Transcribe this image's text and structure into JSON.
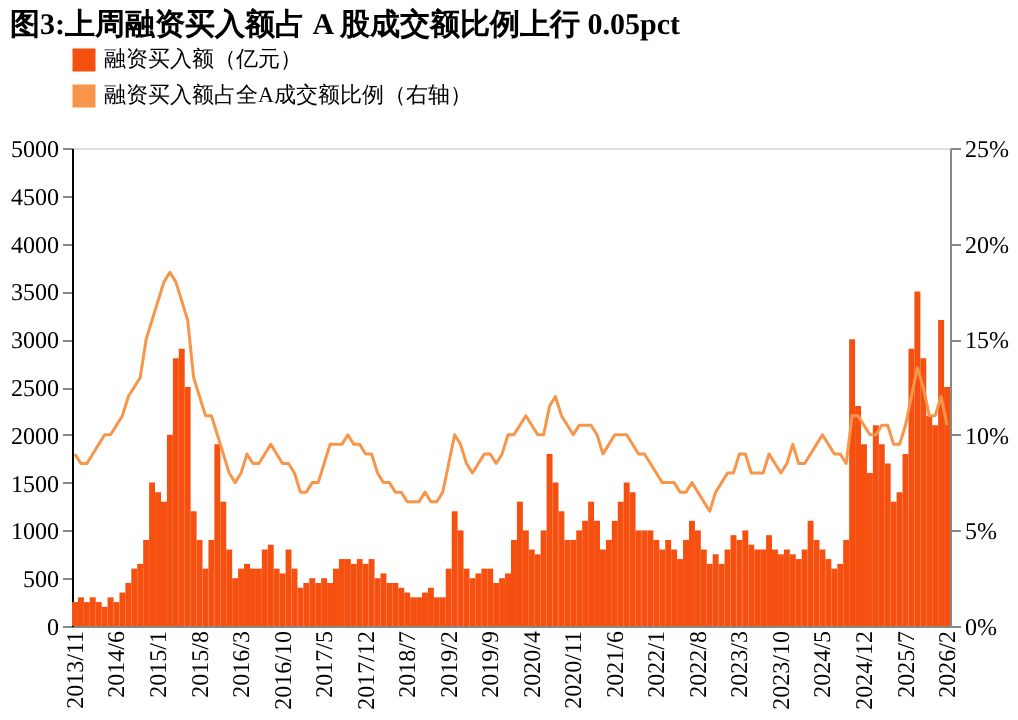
{
  "chart_data": {
    "type": "bar",
    "title": "图3:上周融资买入额占 A 股成交额比例上行 0.05pct",
    "categories": [
      "2013/11",
      null,
      null,
      null,
      null,
      null,
      null,
      "2014/6",
      null,
      null,
      null,
      null,
      null,
      null,
      "2015/1",
      null,
      null,
      null,
      null,
      null,
      null,
      "2015/8",
      null,
      null,
      null,
      null,
      null,
      null,
      "2016/3",
      null,
      null,
      null,
      null,
      null,
      null,
      "2016/10",
      null,
      null,
      null,
      null,
      null,
      null,
      "2017/5",
      null,
      null,
      null,
      null,
      null,
      null,
      "2017/12",
      null,
      null,
      null,
      null,
      null,
      null,
      "2018/7",
      null,
      null,
      null,
      null,
      null,
      null,
      "2019/2",
      null,
      null,
      null,
      null,
      null,
      null,
      "2019/9",
      null,
      null,
      null,
      null,
      null,
      null,
      "2020/4",
      null,
      null,
      null,
      null,
      null,
      null,
      "2020/11",
      null,
      null,
      null,
      null,
      null,
      null,
      "2021/6",
      null,
      null,
      null,
      null,
      null,
      null,
      "2022/1",
      null,
      null,
      null,
      null,
      null,
      null,
      "2022/8",
      null,
      null,
      null,
      null,
      null,
      null,
      "2023/3",
      null,
      null,
      null,
      null,
      null,
      null,
      "2023/10",
      null,
      null,
      null,
      null,
      null,
      null,
      "2024/5",
      null,
      null,
      null,
      null,
      null,
      null,
      "2024/12",
      null,
      null,
      null,
      null,
      null,
      null,
      "2025/7",
      null,
      null,
      null,
      null,
      null,
      null,
      "2026/2"
    ],
    "series": [
      {
        "name": "融资买入额（亿元）",
        "color": "#f5500f",
        "values": [
          250,
          300,
          250,
          300,
          250,
          200,
          300,
          250,
          350,
          450,
          600,
          650,
          900,
          1500,
          1400,
          1300,
          2000,
          2800,
          2900,
          2500,
          1200,
          900,
          600,
          900,
          1900,
          1300,
          800,
          500,
          600,
          650,
          600,
          600,
          800,
          850,
          600,
          550,
          800,
          600,
          400,
          450,
          500,
          450,
          500,
          450,
          600,
          700,
          700,
          650,
          700,
          650,
          700,
          500,
          550,
          450,
          450,
          400,
          350,
          300,
          300,
          350,
          400,
          300,
          300,
          600,
          1200,
          1000,
          600,
          500,
          550,
          600,
          600,
          450,
          500,
          550,
          900,
          1300,
          1000,
          800,
          750,
          1000,
          1800,
          1500,
          1200,
          900,
          900,
          1000,
          1100,
          1300,
          1100,
          800,
          900,
          1100,
          1300,
          1500,
          1400,
          1000,
          1000,
          1000,
          900,
          800,
          900,
          800,
          700,
          900,
          1100,
          1000,
          800,
          650,
          750,
          650,
          800,
          950,
          900,
          1000,
          850,
          800,
          800,
          950,
          800,
          750,
          800,
          750,
          700,
          800,
          1100,
          900,
          800,
          700,
          600,
          650,
          900,
          3000,
          2300,
          1900,
          1600,
          2100,
          1900,
          1700,
          1300,
          1400,
          1800,
          2900,
          3500,
          2800,
          2200,
          2100,
          3200,
          2500
        ]
      },
      {
        "name": "融资买入额占全A成交额比例（右轴）",
        "type": "line",
        "axis": "y2",
        "color": "#f7964a",
        "values": [
          9,
          8.5,
          8.5,
          9,
          9.5,
          10,
          10,
          10.5,
          11,
          12,
          12.5,
          13,
          15,
          16,
          17,
          18,
          18.5,
          18,
          17,
          16,
          13,
          12,
          11,
          11,
          10,
          9,
          8,
          7.5,
          8,
          9,
          8.5,
          8.5,
          9,
          9.5,
          9,
          8.5,
          8.5,
          8,
          7,
          7,
          7.5,
          7.5,
          8.5,
          9.5,
          9.5,
          9.5,
          10,
          9.5,
          9.5,
          9,
          9,
          8,
          7.5,
          7.5,
          7,
          7,
          6.5,
          6.5,
          6.5,
          7,
          6.5,
          6.5,
          7,
          8.5,
          10,
          9.5,
          8.5,
          8,
          8.5,
          9,
          9,
          8.5,
          9,
          10,
          10,
          10.5,
          11,
          10.5,
          10,
          10,
          11.5,
          12,
          11,
          10.5,
          10,
          10.5,
          10.5,
          10.5,
          10,
          9,
          9.5,
          10,
          10,
          10,
          9.5,
          9,
          9,
          8.5,
          8,
          7.5,
          7.5,
          7.5,
          7,
          7,
          7.5,
          7,
          6.5,
          6,
          7,
          7.5,
          8,
          8,
          9,
          9,
          8,
          8,
          8,
          9,
          8.5,
          8,
          8.5,
          9.5,
          8.5,
          8.5,
          9,
          9.5,
          10,
          9.5,
          9,
          9,
          8.5,
          11,
          11,
          10.5,
          10,
          10,
          10.5,
          10.5,
          9.5,
          9.5,
          10.5,
          12,
          13.5,
          12.5,
          11,
          11,
          12,
          10.5
        ]
      }
    ],
    "ylim": [
      0,
      5000
    ],
    "yticks": [
      0,
      500,
      1000,
      1500,
      2000,
      2500,
      3000,
      3500,
      4000,
      4500,
      5000
    ],
    "y2lim": [
      0,
      25
    ],
    "y2ticks": [
      {
        "value": 0,
        "label": "0%"
      },
      {
        "value": 5,
        "label": "5%"
      },
      {
        "value": 10,
        "label": "10%"
      },
      {
        "value": 15,
        "label": "15%"
      },
      {
        "value": 20,
        "label": "20%"
      },
      {
        "value": 25,
        "label": "25%"
      }
    ],
    "legend": "top",
    "grid": false
  }
}
